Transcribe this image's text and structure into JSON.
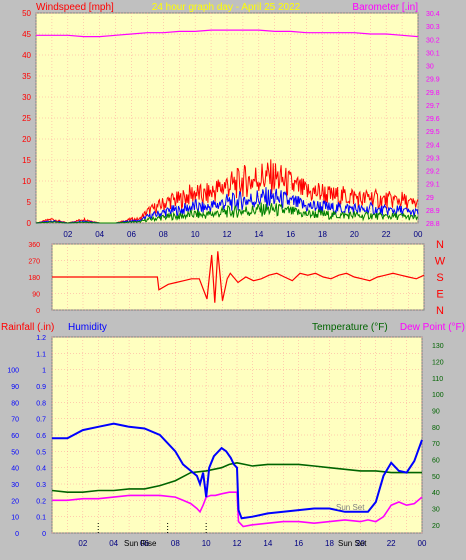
{
  "colors": {
    "background": "#c0c0c0",
    "plot": "#ffffc0",
    "grid": "#ff9a9a",
    "title": "#ffff00",
    "wind": "#ff0000",
    "gust_mid": "#0000ff",
    "wind_low": "#008000",
    "barometer": "#ff00ff",
    "direction": "#ff0000",
    "rain": "#ff0000",
    "humidity": "#0000ff",
    "temperature": "#006400",
    "dewpoint": "#ff00ff"
  },
  "top": {
    "title": "24 hour graph day - April 25 2022",
    "left_label": "Windspeed [mph]",
    "right_label": "Barometer [.in]"
  },
  "middle": {
    "compass_labels": [
      "N",
      "W",
      "S",
      "E",
      "N"
    ]
  },
  "bottom": {
    "rain_label": "Rainfall (.in)",
    "humidity_label": "Humidity",
    "temp_label": "Temperature (°F)",
    "dew_label": "Dew Point (°F)",
    "sunrise_label": "Sun Rise",
    "sunset_label": "Sun Set",
    "sunset_label_plot": "Sun Set"
  },
  "chart_data": [
    {
      "type": "line",
      "title": "24 hour graph day - April 25 2022",
      "xlabel": "",
      "x_ticks": [
        "02",
        "04",
        "06",
        "08",
        "10",
        "12",
        "14",
        "16",
        "18",
        "20",
        "22",
        "00"
      ],
      "ylabel": "Windspeed [mph]",
      "ylim": [
        0,
        50
      ],
      "y_ticks": [
        "0",
        "5",
        "10",
        "15",
        "20",
        "25",
        "30",
        "35",
        "40",
        "45",
        "50"
      ],
      "y2label": "Barometer [.in]",
      "y2lim": [
        28.8,
        30.4
      ],
      "y2_ticks": [
        "28.8",
        "28.9",
        "29",
        "29.1",
        "29.2",
        "29.3",
        "29.4",
        "29.5",
        "29.6",
        "29.7",
        "29.8",
        "29.9",
        "30",
        "30.1",
        "30.2",
        "30.3",
        "30.4"
      ],
      "series": [
        {
          "name": "Windspeed [mph]",
          "axis": "left",
          "x": [
            0,
            1,
            2,
            3,
            4,
            5,
            6,
            6.5,
            7,
            7.5,
            8,
            8.5,
            9,
            9.5,
            10,
            10.5,
            11,
            11.5,
            12,
            12.5,
            13,
            13.5,
            14,
            14.5,
            15,
            15.5,
            16,
            16.5,
            17,
            17.5,
            18,
            18.5,
            19,
            19.5,
            20,
            20.5,
            21,
            21.5,
            22,
            22.5,
            23,
            23.5,
            24
          ],
          "values": [
            0,
            1,
            0,
            1,
            0,
            0,
            1,
            1,
            3,
            4,
            5,
            6,
            6,
            7,
            8,
            7,
            8,
            9,
            10,
            10,
            11,
            11,
            12,
            12,
            12,
            11,
            10,
            9,
            8,
            8,
            8,
            7,
            7,
            7,
            7,
            6,
            7,
            6,
            6,
            6,
            6,
            5,
            5
          ]
        },
        {
          "name": "Barometer [.in]",
          "axis": "right",
          "x": [
            0,
            1,
            2,
            3,
            4,
            5,
            6,
            7,
            8,
            9,
            10,
            11,
            12,
            13,
            14,
            15,
            16,
            17,
            18,
            19,
            20,
            21,
            22,
            23,
            24
          ],
          "values": [
            30.23,
            30.23,
            30.23,
            30.22,
            30.22,
            30.23,
            30.24,
            30.25,
            30.25,
            30.26,
            30.26,
            30.27,
            30.27,
            30.27,
            30.27,
            30.26,
            30.26,
            30.25,
            30.25,
            30.25,
            30.25,
            30.24,
            30.24,
            30.23,
            30.22
          ]
        }
      ]
    },
    {
      "type": "line",
      "ylim": [
        0,
        360
      ],
      "y_ticks": [
        "0",
        "90",
        "180",
        "270",
        "360"
      ],
      "series": [
        {
          "name": "Wind direction",
          "x": [
            0,
            1,
            2,
            3,
            4,
            5,
            6,
            6.8,
            6.9,
            7.5,
            8,
            8.5,
            9,
            9.5,
            10,
            10.3,
            10.5,
            10.7,
            11,
            11.3,
            11.5,
            12,
            12.5,
            13,
            13.5,
            14,
            14.5,
            15,
            15.5,
            16,
            16.5,
            17,
            17.5,
            18,
            18.5,
            19,
            19.5,
            20,
            20.5,
            21,
            21.5,
            22,
            22.5,
            23,
            23.5,
            24
          ],
          "values": [
            180,
            180,
            180,
            180,
            180,
            180,
            180,
            180,
            110,
            140,
            150,
            160,
            170,
            170,
            60,
            300,
            40,
            320,
            50,
            170,
            200,
            150,
            180,
            160,
            170,
            190,
            200,
            180,
            160,
            200,
            190,
            200,
            180,
            170,
            190,
            200,
            180,
            170,
            160,
            180,
            190,
            200,
            190,
            180,
            170,
            190
          ]
        }
      ]
    },
    {
      "type": "line",
      "xlabel": "",
      "x_ticks": [
        "02",
        "04",
        "06",
        "08",
        "10",
        "12",
        "14",
        "16",
        "18",
        "20",
        "22",
        "00"
      ],
      "ylabel": "Rainfall (.in)",
      "ylim": [
        0,
        1.2
      ],
      "y_ticks": [
        "0",
        "0.1",
        "0.2",
        "0.3",
        "0.4",
        "0.5",
        "0.6",
        "0.7",
        "0.8",
        "0.9",
        "1",
        "1.1",
        "1.2"
      ],
      "y_inner_ticks": [
        "0",
        "10",
        "20",
        "30",
        "40",
        "50",
        "60",
        "70",
        "80",
        "90",
        "100"
      ],
      "y2label": "Temperature (°F)",
      "y2lim": [
        15,
        135
      ],
      "y2_ticks": [
        "20",
        "30",
        "40",
        "50",
        "60",
        "70",
        "80",
        "90",
        "100",
        "110",
        "120",
        "130"
      ],
      "series": [
        {
          "name": "Humidity",
          "axis": "humidity",
          "x": [
            0,
            1,
            2,
            3,
            4,
            5,
            6,
            7,
            8,
            8.5,
            9,
            9.4,
            9.6,
            9.8,
            10,
            10.2,
            10.5,
            11,
            11.3,
            11.6,
            11.8,
            12,
            12.1,
            12.3,
            13,
            14,
            15,
            16,
            17,
            18,
            19,
            20,
            20.5,
            21,
            21.5,
            22,
            22.5,
            23,
            23.5,
            24
          ],
          "values": [
            58,
            58,
            63,
            65,
            67,
            65,
            64,
            60,
            50,
            42,
            38,
            35,
            30,
            37,
            22,
            40,
            47,
            52,
            50,
            46,
            42,
            40,
            14,
            9,
            10,
            12,
            13,
            14,
            15,
            15,
            13,
            13,
            13,
            19,
            35,
            43,
            38,
            37,
            44,
            57
          ]
        },
        {
          "name": "Temperature (°F)",
          "axis": "temp",
          "x": [
            0,
            1,
            2,
            3,
            4,
            5,
            6,
            7,
            8,
            9,
            10,
            11,
            11.5,
            12,
            12.5,
            13,
            14,
            15,
            16,
            17,
            18,
            19,
            20,
            21,
            22,
            23,
            24
          ],
          "values": [
            41,
            40,
            40,
            41,
            41,
            42,
            42,
            44,
            47,
            52,
            53,
            55,
            57,
            58,
            57,
            56,
            57,
            57,
            57,
            56,
            55,
            54,
            53,
            53,
            52,
            52,
            52
          ]
        },
        {
          "name": "Dew Point (°F)",
          "axis": "temp",
          "x": [
            0,
            1,
            2,
            3,
            4,
            5,
            6,
            7,
            8,
            8.5,
            9,
            9.4,
            9.6,
            9.8,
            10,
            10.3,
            10.6,
            11,
            11.5,
            12,
            12.1,
            12.4,
            13,
            14,
            15,
            16,
            17,
            18,
            19,
            20,
            20.5,
            21,
            21.5,
            22,
            22.5,
            23,
            23.5,
            24
          ],
          "values": [
            35,
            35,
            36,
            36,
            37,
            38,
            38,
            38,
            37,
            35,
            33,
            30,
            28,
            32,
            37,
            38,
            38,
            39,
            40,
            40,
            22,
            19,
            20,
            21,
            22,
            22,
            21,
            22,
            23,
            22,
            23,
            22,
            25,
            32,
            34,
            32,
            33,
            37
          ]
        }
      ]
    }
  ]
}
